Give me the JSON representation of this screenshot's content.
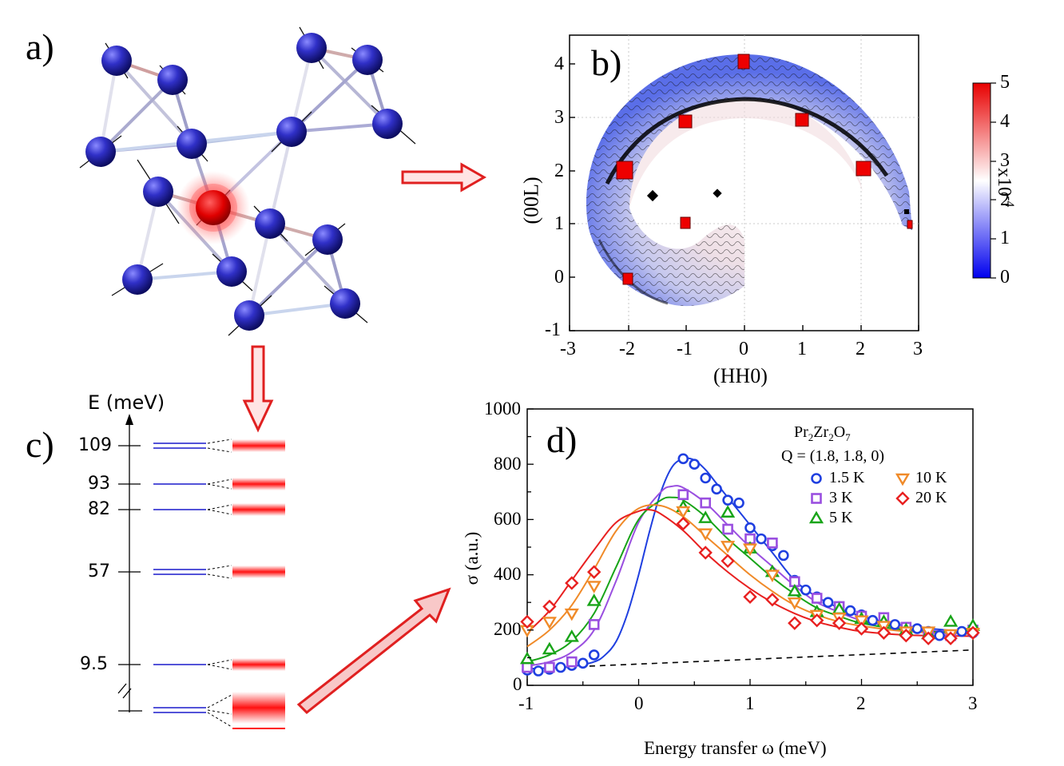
{
  "panels": {
    "a": {
      "label": "a)"
    },
    "b": {
      "label": "b)",
      "xlabel": "(HH0)",
      "ylabel": "(00L)",
      "xticks": [
        "-3",
        "-2",
        "-1",
        "0",
        "1",
        "2",
        "3"
      ],
      "yticks": [
        "-1",
        "0",
        "1",
        "2",
        "3",
        "4"
      ],
      "colorbar": {
        "ticks": [
          "0",
          "1",
          "2",
          "3",
          "4",
          "5"
        ],
        "scale_label": "x10",
        "scale_exp": "-4"
      }
    },
    "c": {
      "label": "c)",
      "axis_label": "E (meV)",
      "levels": [
        {
          "energy": "109",
          "double": true
        },
        {
          "energy": "93",
          "double": false
        },
        {
          "energy": "82",
          "double": false
        },
        {
          "energy": "57",
          "double": true
        },
        {
          "energy": "9.5",
          "double": false
        },
        {
          "energy": "",
          "double": true
        }
      ]
    },
    "d": {
      "label": "d)"
    }
  },
  "colors": {
    "atom_blue": "#2b2bb5",
    "highlight_red": "#e00000",
    "arrow_red": "#e03030",
    "level_blue": "#1a1acc",
    "s1_5K": "#1f3fe0",
    "s3K": "#9a4fe0",
    "s5K": "#18a418",
    "s10K": "#f08a28",
    "s20K": "#e82020"
  },
  "chart_data": {
    "type": "scatter",
    "title": "",
    "xlabel": "Energy transfer ω (meV)",
    "ylabel": "σ (a.u.)",
    "xlim": [
      -1,
      3
    ],
    "ylim": [
      0,
      1000
    ],
    "xticks": [
      "-1",
      "0",
      "1",
      "2",
      "3"
    ],
    "yticks": [
      "0",
      "200",
      "400",
      "600",
      "800",
      "1000"
    ],
    "legend": {
      "compound_base": "Pr",
      "compound_sub1": "2",
      "compound_mid": "Zr",
      "compound_sub2": "2",
      "compound_end": "O",
      "compound_sub3": "7",
      "q": "Q = (1.8, 1.8, 0)",
      "placement": "top-right"
    },
    "background_line": {
      "x": [
        -1,
        3
      ],
      "y": [
        60,
        128
      ],
      "style": "dashed"
    },
    "series": [
      {
        "name": "1.5 K",
        "marker": "circle",
        "color": "#1f3fe0",
        "x": [
          -1,
          -0.9,
          -0.8,
          -0.7,
          -0.6,
          -0.5,
          -0.4,
          0.4,
          0.5,
          0.6,
          0.7,
          0.8,
          0.9,
          1.0,
          1.1,
          1.2,
          1.3,
          1.4,
          1.5,
          1.6,
          1.7,
          1.8,
          1.9,
          2.0,
          2.1,
          2.2,
          2.3,
          2.4,
          2.5,
          2.6,
          2.7,
          2.8,
          2.9,
          3.0
        ],
        "y": [
          55,
          52,
          58,
          65,
          72,
          80,
          110,
          820,
          800,
          750,
          710,
          670,
          660,
          570,
          530,
          505,
          470,
          380,
          345,
          320,
          300,
          285,
          270,
          255,
          235,
          225,
          220,
          210,
          205,
          195,
          180,
          175,
          195,
          190
        ],
        "fit_x": [
          -1,
          -0.8,
          -0.6,
          -0.4,
          -0.3,
          -0.2,
          -0.1,
          0.0,
          0.1,
          0.2,
          0.3,
          0.4,
          0.5,
          0.6,
          0.7,
          0.8,
          0.9,
          1.0,
          1.2,
          1.4,
          1.6,
          1.8,
          2.0,
          2.4,
          3.0
        ],
        "fit_y": [
          60,
          63,
          68,
          85,
          110,
          160,
          260,
          400,
          560,
          700,
          790,
          820,
          815,
          780,
          730,
          680,
          630,
          580,
          480,
          380,
          320,
          280,
          250,
          215,
          192
        ]
      },
      {
        "name": "3 K",
        "marker": "square",
        "color": "#9a4fe0",
        "x": [
          -1,
          -0.8,
          -0.6,
          -0.4,
          0.4,
          0.6,
          0.8,
          1.0,
          1.2,
          1.4,
          1.6,
          1.8,
          2.0,
          2.2,
          2.4,
          2.6,
          2.8,
          3.0
        ],
        "y": [
          65,
          65,
          85,
          220,
          690,
          660,
          565,
          530,
          515,
          375,
          315,
          285,
          250,
          245,
          210,
          185,
          180,
          200
        ],
        "fit_x": [
          -1,
          -0.8,
          -0.6,
          -0.4,
          -0.2,
          0.0,
          0.2,
          0.3,
          0.4,
          0.6,
          0.8,
          1.0,
          1.2,
          1.4,
          1.6,
          1.8,
          2.0,
          2.4,
          3.0
        ],
        "fit_y": [
          70,
          85,
          120,
          200,
          380,
          590,
          700,
          720,
          715,
          660,
          580,
          500,
          430,
          360,
          300,
          265,
          235,
          205,
          190
        ]
      },
      {
        "name": "5 K",
        "marker": "triangle-up",
        "color": "#18a418",
        "x": [
          -1,
          -0.8,
          -0.6,
          -0.4,
          0.4,
          0.6,
          0.8,
          1.0,
          1.2,
          1.4,
          1.6,
          1.8,
          2.0,
          2.2,
          2.4,
          2.6,
          2.8,
          3.0
        ],
        "y": [
          95,
          130,
          175,
          305,
          645,
          605,
          625,
          495,
          410,
          340,
          265,
          275,
          240,
          230,
          200,
          185,
          230,
          215
        ],
        "fit_x": [
          -1,
          -0.8,
          -0.6,
          -0.4,
          -0.2,
          0.0,
          0.2,
          0.3,
          0.4,
          0.6,
          0.8,
          1.0,
          1.2,
          1.4,
          1.6,
          1.8,
          2.0,
          2.4,
          3.0
        ],
        "fit_y": [
          85,
          110,
          160,
          260,
          430,
          600,
          670,
          680,
          670,
          610,
          530,
          460,
          390,
          330,
          280,
          250,
          225,
          200,
          188
        ]
      },
      {
        "name": "10 K",
        "marker": "triangle-down",
        "color": "#f08a28",
        "x": [
          -1,
          -0.8,
          -0.6,
          -0.4,
          0.4,
          0.6,
          0.8,
          1.0,
          1.2,
          1.4,
          1.6,
          1.8,
          2.0,
          2.2,
          2.4,
          2.6,
          2.8,
          3.0
        ],
        "y": [
          200,
          230,
          260,
          360,
          630,
          550,
          505,
          495,
          400,
          300,
          255,
          245,
          235,
          215,
          195,
          195,
          185,
          190
        ],
        "fit_x": [
          -1,
          -0.8,
          -0.6,
          -0.4,
          -0.2,
          0.0,
          0.2,
          0.4,
          0.6,
          0.8,
          1.0,
          1.2,
          1.4,
          1.6,
          1.8,
          2.0,
          2.4,
          3.0
        ],
        "fit_y": [
          140,
          200,
          290,
          420,
          560,
          640,
          650,
          610,
          540,
          470,
          400,
          340,
          290,
          255,
          230,
          215,
          195,
          185
        ]
      },
      {
        "name": "20 K",
        "marker": "diamond",
        "color": "#e82020",
        "x": [
          -1,
          -0.8,
          -0.6,
          -0.4,
          0.4,
          0.6,
          0.8,
          1.0,
          1.2,
          1.4,
          1.6,
          1.8,
          2.0,
          2.2,
          2.4,
          2.6,
          2.8,
          3.0
        ],
        "y": [
          230,
          285,
          370,
          410,
          585,
          480,
          450,
          320,
          310,
          225,
          235,
          225,
          205,
          190,
          180,
          170,
          170,
          190
        ],
        "fit_x": [
          -1,
          -0.8,
          -0.6,
          -0.4,
          -0.2,
          0.0,
          0.1,
          0.2,
          0.4,
          0.6,
          0.8,
          1.0,
          1.2,
          1.4,
          1.6,
          1.8,
          2.0,
          2.4,
          3.0
        ],
        "fit_y": [
          190,
          270,
          380,
          490,
          590,
          630,
          635,
          620,
          560,
          480,
          410,
          350,
          300,
          260,
          230,
          210,
          195,
          182,
          178
        ]
      }
    ]
  }
}
